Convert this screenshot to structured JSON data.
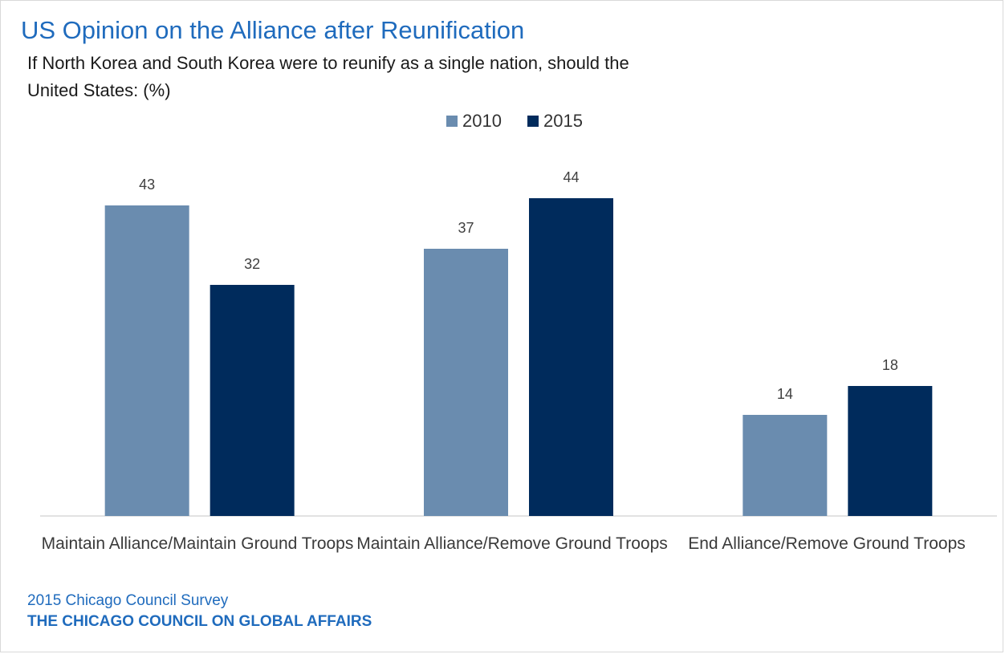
{
  "header": {
    "title": "US Opinion on the Alliance after Reunification",
    "subtitle": "If North Korea and South Korea were to reunify as a single nation, should the United States: (%)"
  },
  "footer": {
    "source": "2015 Chicago Council Survey",
    "organization": "THE CHICAGO COUNCIL ON GLOBAL AFFAIRS"
  },
  "colors": {
    "series_2010": "#6a8caf",
    "series_2015": "#002b5c",
    "title": "#1f6bbd",
    "axis": "#d9d9d9"
  },
  "chart_data": {
    "type": "bar",
    "title": "US Opinion on the Alliance after Reunification",
    "subtitle": "If North Korea and South Korea were to reunify as a single nation, should the United States: (%)",
    "categories": [
      "Maintain Alliance/Maintain Ground Troops",
      "Maintain Alliance/Remove Ground Troops",
      "End Alliance/Remove Ground Troops"
    ],
    "series": [
      {
        "name": "2010",
        "values": [
          43,
          37,
          14
        ],
        "color": "#6a8caf"
      },
      {
        "name": "2015",
        "values": [
          32,
          44,
          18
        ],
        "color": "#002b5c"
      }
    ],
    "xlabel": "",
    "ylabel": "",
    "ylim": [
      0,
      50
    ],
    "legend": "top-center",
    "grid": false,
    "data_labels": true
  }
}
